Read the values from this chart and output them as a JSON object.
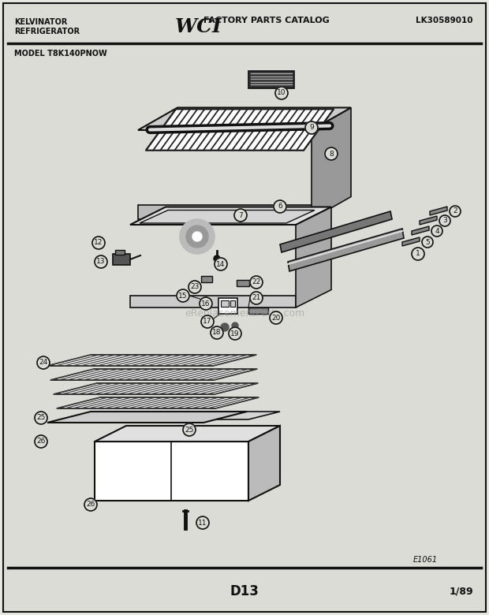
{
  "bg_color": "#e8e8e3",
  "page_color": "#dcdcd7",
  "border_color": "#111111",
  "header": {
    "left_line1": "KELVINATOR",
    "left_line2": "REFRIGERATOR",
    "center_text": "FACTORY PARTS CATALOG",
    "right_text": "LK30589010"
  },
  "model_text": "MODEL T8K140PNOW",
  "footer_ref": "E1061",
  "footer_center": "D13",
  "footer_right": "1/89",
  "watermark": "eReplacementParts.com"
}
